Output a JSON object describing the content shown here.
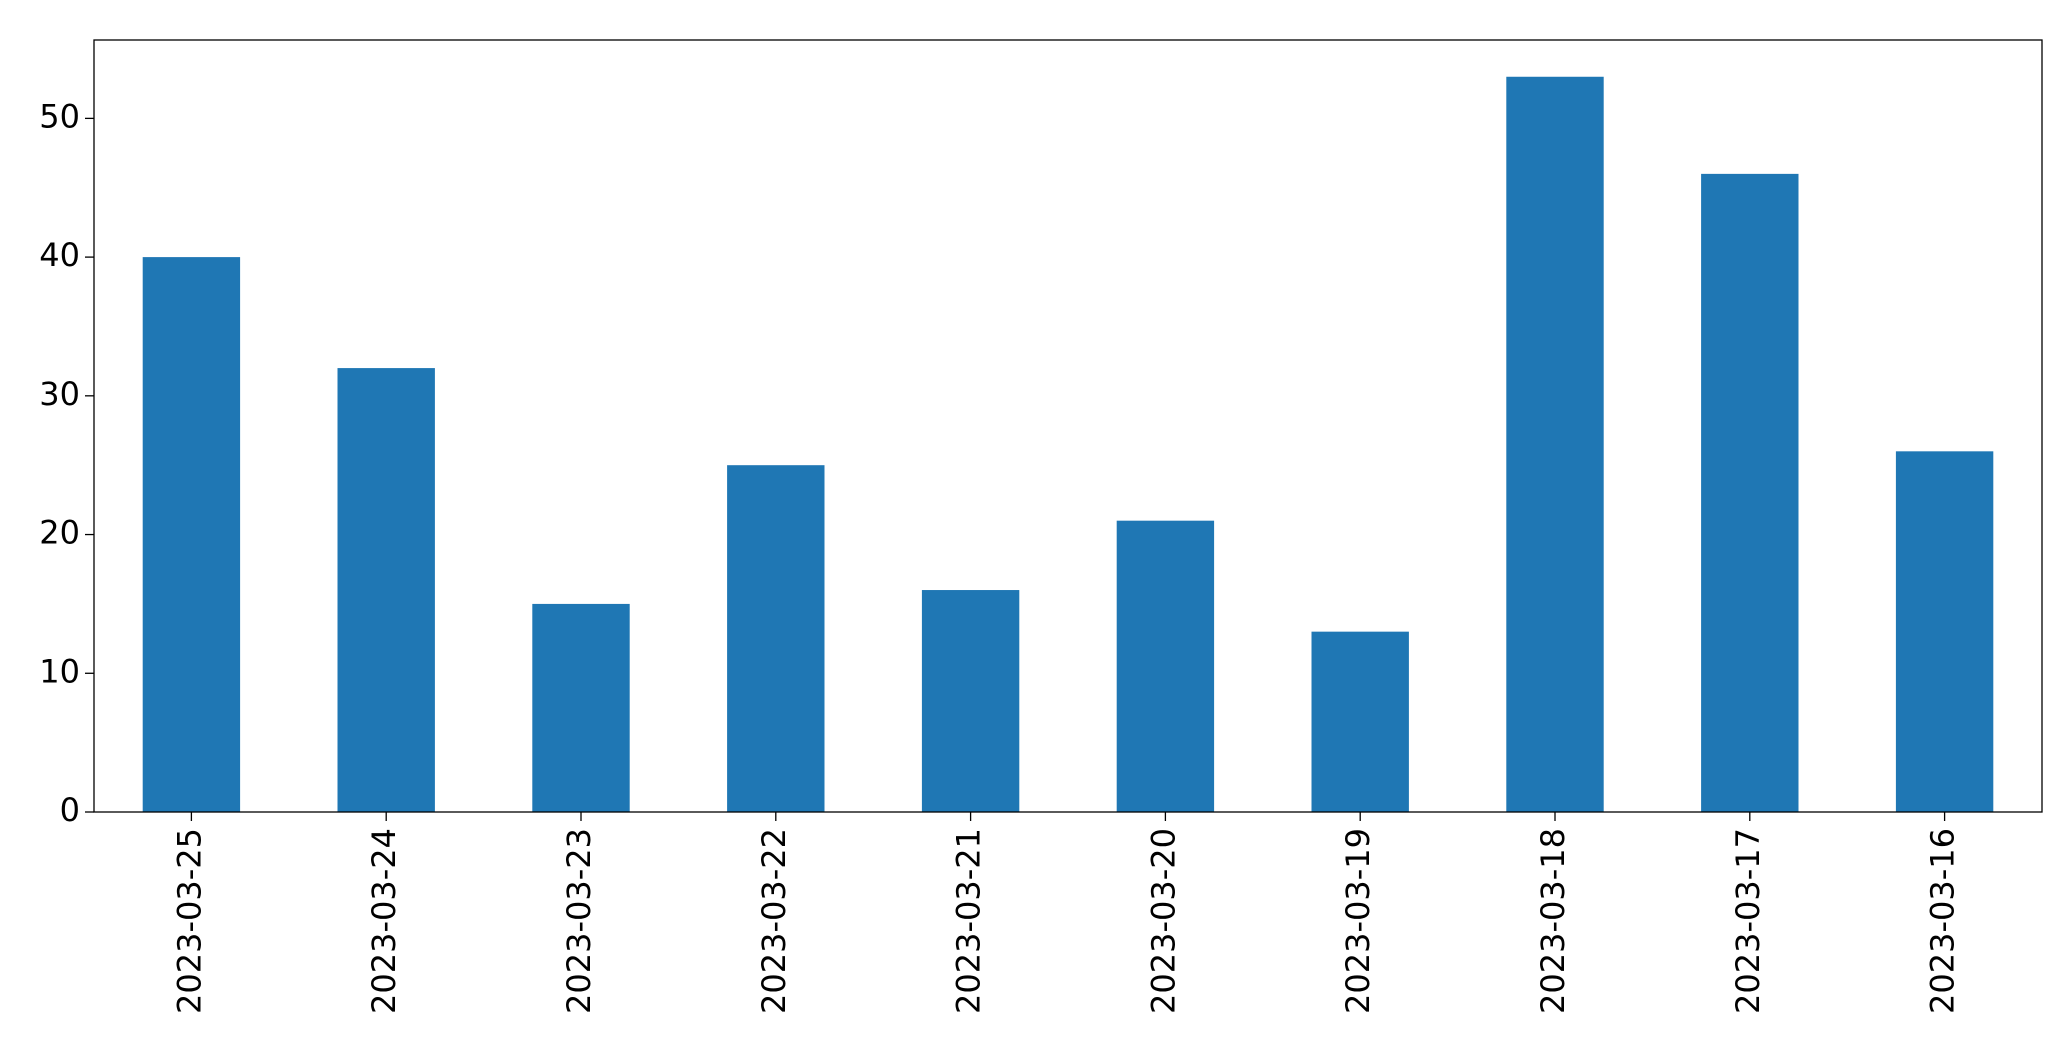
{
  "chart_data": {
    "type": "bar",
    "categories": [
      "2023-03-25",
      "2023-03-24",
      "2023-03-23",
      "2023-03-22",
      "2023-03-21",
      "2023-03-20",
      "2023-03-19",
      "2023-03-18",
      "2023-03-17",
      "2023-03-16"
    ],
    "values": [
      40,
      32,
      15,
      25,
      16,
      21,
      13,
      53,
      46,
      26
    ],
    "color": "#1f77b4",
    "ylim": [
      0,
      55.65
    ],
    "yticks": [
      0,
      10,
      20,
      30,
      40,
      50
    ],
    "grid": false
  }
}
